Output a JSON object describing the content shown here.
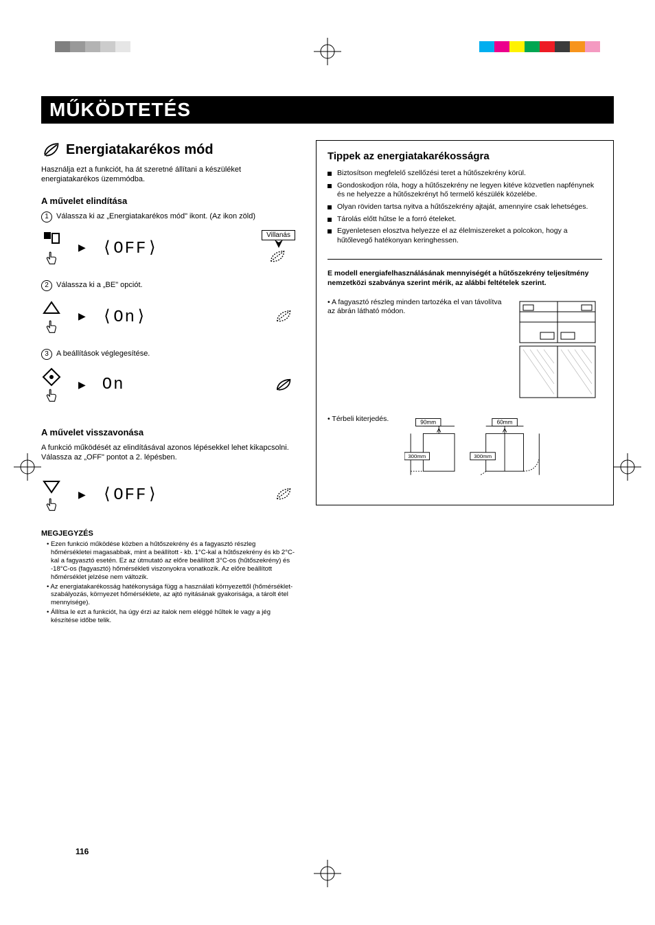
{
  "print": {
    "left_swatches": [
      "#808080",
      "#999999",
      "#b3b3b3",
      "#cccccc",
      "#e6e6e6"
    ],
    "right_swatches": [
      "#00aeef",
      "#ec008c",
      "#fff200",
      "#00a651",
      "#ed1c24",
      "#3b3b3b",
      "#f7941d",
      "#f49ac1"
    ]
  },
  "section_heading": "MŰKÖDTETÉS",
  "feature": {
    "title": "Energiatakarékos mód",
    "intro": "Használja ezt a funkciót, ha át szeretné állítani a készüléket energiatakarékos üzemmódba."
  },
  "start": {
    "heading": "A művelet elindítása",
    "steps": [
      {
        "num": "1",
        "text": "Válassza ki az „Energiatakarékos mód\" ikont. (Az ikon zöld)"
      },
      {
        "num": "2",
        "text": "Válassza ki a „BE\" opciót."
      },
      {
        "num": "3",
        "text": "A beállítások véglegesítése."
      }
    ],
    "blink_label": "Villanás",
    "display_off_dashed": "OFF",
    "display_on_dashed": "On",
    "display_on_solid": "On"
  },
  "cancel": {
    "heading": "A művelet visszavonása",
    "text": "A funkció működését az elindításával azonos lépésekkel lehet kikapcsolni.\nVálassza az „OFF\" pontot a 2. lépésben.",
    "display": "OFF"
  },
  "notes": {
    "title": "MEGJEGYZÉS",
    "items": [
      "Ezen funkció működése közben a hűtőszekrény és a fagyasztó részleg hőmérsékletei magasabbak, mint a beállított - kb. 1°C-kal a hűtőszekrény és kb 2°C-kal a fagyasztó esetén. Ez az útmutató az előre beállított 3°C-os (hűtőszekrény) és -18°C-os (fagyasztó) hőmérsékleti viszonyokra vonatkozik. Az előre beállított hőmérséklet jelzése nem változik.",
      "Az energiatakarékosság hatékonysága függ a használati környezettől (hőmérséklet-szabályozás, környezet hőmérséklete, az ajtó nyitásának gyakorisága, a tárolt étel mennyisége).",
      "Állítsa le ezt a funkciót, ha úgy érzi az italok nem eléggé hűltek le vagy a jég készítése időbe telik."
    ]
  },
  "tips": {
    "title": "Tippek az energiatakarékosságra",
    "items": [
      "Biztosítson megfelelő szellőzési teret a hűtőszekrény körül.",
      "Gondoskodjon róla, hogy a hűtőszekrény ne legyen kitéve közvetlen napfénynek és ne helyezze a hűtőszekrényt hő termelő készülék közelébe.",
      "Olyan röviden tartsa nyitva a hűtőszekrény ajtaját, amennyire csak lehetséges.",
      "Tárolás előtt hűtse le a forró ételeket.",
      "Egyenletesen elosztva helyezze el az élelmiszereket a polcokon, hogy a hűtőlevegő hatékonyan keringhessen."
    ],
    "measure_intro": "E modell energiafelhasználásának mennyiségét a hűtőszekrény teljesítmény nemzetközi szabványa szerint mérik, az alábbi feltételek szerint.",
    "cond1": "A fagyasztó részleg minden tartozéka el van távolítva az ábrán látható módon.",
    "cond2": "Térbeli kiterjedés.",
    "dims": {
      "top_left": "90mm",
      "top_right": "60mm",
      "bottom_left": "300mm",
      "bottom_right": "300mm"
    }
  },
  "page_number": "116"
}
